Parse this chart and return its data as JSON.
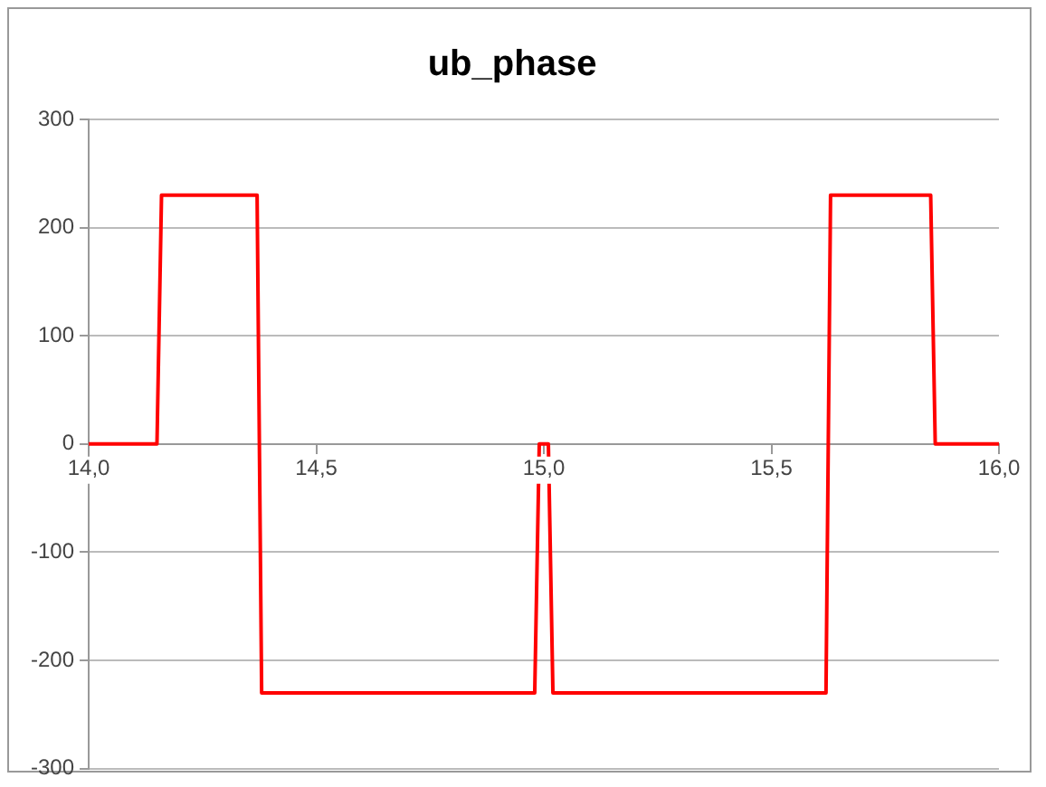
{
  "chart_data": {
    "type": "line",
    "title": "ub_phase",
    "x": [
      14.0,
      14.15,
      14.16,
      14.37,
      14.38,
      14.98,
      14.99,
      15.01,
      15.02,
      15.62,
      15.63,
      15.85,
      15.86,
      16.0
    ],
    "series": [
      {
        "color": "#ff0000",
        "values": [
          0,
          0,
          230,
          230,
          -230,
          -230,
          0,
          0,
          -230,
          -230,
          230,
          230,
          0,
          0
        ]
      }
    ],
    "xlim": [
      14.0,
      16.0
    ],
    "xticks": [
      {
        "value": 14.0,
        "label": "14,0"
      },
      {
        "value": 14.5,
        "label": "14,5"
      },
      {
        "value": 15.0,
        "label": "15,0"
      },
      {
        "value": 15.5,
        "label": "15,5"
      },
      {
        "value": 16.0,
        "label": "16,0"
      }
    ],
    "ylim": [
      -300,
      300
    ],
    "yticks": [
      -300,
      -200,
      -100,
      0,
      100,
      200,
      300
    ],
    "grid": "y",
    "legend": false,
    "marker": "none",
    "line_style": "solid"
  }
}
